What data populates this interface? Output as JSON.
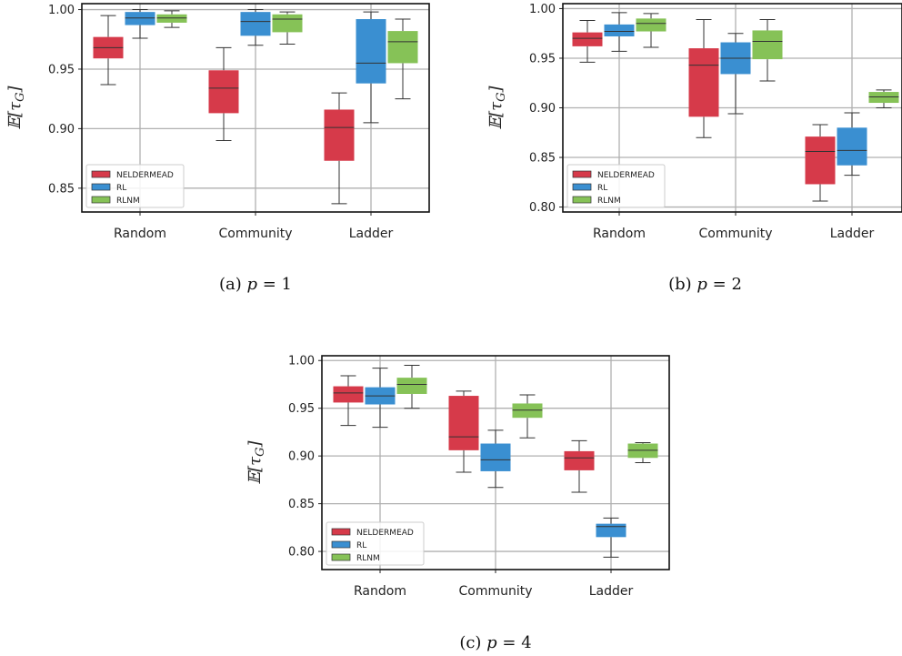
{
  "colors": {
    "NELDERMEAD": "#d63a4a",
    "RL": "#3a8fd1",
    "RLNM": "#86c257"
  },
  "chart_data": [
    {
      "type": "box",
      "caption_prefix": "(a) ",
      "caption_var": "p",
      "caption_value": " = 1",
      "ylabel": "𝔼[τ",
      "ylabel_sub": "G",
      "ylabel_close": "]",
      "ylim": [
        0.83,
        1.005
      ],
      "yticks": [
        "0.85",
        "0.90",
        "0.95",
        "1.00"
      ],
      "categories": [
        "Random",
        "Community",
        "Ladder"
      ],
      "grid": true,
      "legend_position": "bottom-left",
      "series": [
        {
          "name": "NELDERMEAD",
          "boxes": [
            {
              "whislo": 0.937,
              "q1": 0.959,
              "med": 0.968,
              "q3": 0.977,
              "whishi": 0.995
            },
            {
              "whislo": 0.89,
              "q1": 0.913,
              "med": 0.934,
              "q3": 0.949,
              "whishi": 0.968
            },
            {
              "whislo": 0.837,
              "q1": 0.873,
              "med": 0.901,
              "q3": 0.916,
              "whishi": 0.93
            }
          ]
        },
        {
          "name": "RL",
          "boxes": [
            {
              "whislo": 0.976,
              "q1": 0.987,
              "med": 0.993,
              "q3": 0.998,
              "whishi": 1.0
            },
            {
              "whislo": 0.97,
              "q1": 0.978,
              "med": 0.99,
              "q3": 0.998,
              "whishi": 1.0
            },
            {
              "whislo": 0.905,
              "q1": 0.938,
              "med": 0.955,
              "q3": 0.992,
              "whishi": 0.998
            }
          ]
        },
        {
          "name": "RLNM",
          "boxes": [
            {
              "whislo": 0.985,
              "q1": 0.989,
              "med": 0.993,
              "q3": 0.996,
              "whishi": 0.999
            },
            {
              "whislo": 0.971,
              "q1": 0.981,
              "med": 0.992,
              "q3": 0.996,
              "whishi": 0.998
            },
            {
              "whislo": 0.925,
              "q1": 0.955,
              "med": 0.973,
              "q3": 0.982,
              "whishi": 0.992
            }
          ]
        }
      ]
    },
    {
      "type": "box",
      "caption_prefix": "(b) ",
      "caption_var": "p",
      "caption_value": " = 2",
      "ylabel": "𝔼[τ",
      "ylabel_sub": "G",
      "ylabel_close": "]",
      "ylim": [
        0.795,
        1.005
      ],
      "yticks": [
        "0.80",
        "0.85",
        "0.90",
        "0.95",
        "1.00"
      ],
      "categories": [
        "Random",
        "Community",
        "Ladder"
      ],
      "grid": true,
      "legend_position": "bottom-left",
      "series": [
        {
          "name": "NELDERMEAD",
          "boxes": [
            {
              "whislo": 0.946,
              "q1": 0.962,
              "med": 0.97,
              "q3": 0.976,
              "whishi": 0.988
            },
            {
              "whislo": 0.87,
              "q1": 0.891,
              "med": 0.943,
              "q3": 0.96,
              "whishi": 0.989
            },
            {
              "whislo": 0.806,
              "q1": 0.823,
              "med": 0.856,
              "q3": 0.871,
              "whishi": 0.883
            }
          ]
        },
        {
          "name": "RL",
          "boxes": [
            {
              "whislo": 0.957,
              "q1": 0.972,
              "med": 0.977,
              "q3": 0.984,
              "whishi": 0.996
            },
            {
              "whislo": 0.894,
              "q1": 0.934,
              "med": 0.95,
              "q3": 0.966,
              "whishi": 0.975
            },
            {
              "whislo": 0.832,
              "q1": 0.842,
              "med": 0.857,
              "q3": 0.88,
              "whishi": 0.895
            }
          ]
        },
        {
          "name": "RLNM",
          "boxes": [
            {
              "whislo": 0.961,
              "q1": 0.977,
              "med": 0.985,
              "q3": 0.99,
              "whishi": 0.995
            },
            {
              "whislo": 0.927,
              "q1": 0.949,
              "med": 0.967,
              "q3": 0.978,
              "whishi": 0.989
            },
            {
              "whislo": 0.9,
              "q1": 0.905,
              "med": 0.911,
              "q3": 0.916,
              "whishi": 0.918
            }
          ]
        }
      ]
    },
    {
      "type": "box",
      "caption_prefix": "(c) ",
      "caption_var": "p",
      "caption_value": " = 4",
      "ylabel": "𝔼[τ",
      "ylabel_sub": "G",
      "ylabel_close": "]",
      "ylim": [
        0.781,
        1.005
      ],
      "yticks": [
        "0.80",
        "0.85",
        "0.90",
        "0.95",
        "1.00"
      ],
      "categories": [
        "Random",
        "Community",
        "Ladder"
      ],
      "grid": true,
      "legend_position": "bottom-left",
      "series": [
        {
          "name": "NELDERMEAD",
          "boxes": [
            {
              "whislo": 0.932,
              "q1": 0.956,
              "med": 0.966,
              "q3": 0.973,
              "whishi": 0.984
            },
            {
              "whislo": 0.883,
              "q1": 0.906,
              "med": 0.92,
              "q3": 0.963,
              "whishi": 0.968
            },
            {
              "whislo": 0.862,
              "q1": 0.885,
              "med": 0.898,
              "q3": 0.905,
              "whishi": 0.916
            }
          ]
        },
        {
          "name": "RL",
          "boxes": [
            {
              "whislo": 0.93,
              "q1": 0.954,
              "med": 0.963,
              "q3": 0.972,
              "whishi": 0.992
            },
            {
              "whislo": 0.867,
              "q1": 0.884,
              "med": 0.896,
              "q3": 0.913,
              "whishi": 0.927
            },
            {
              "whislo": 0.794,
              "q1": 0.815,
              "med": 0.826,
              "q3": 0.829,
              "whishi": 0.835
            }
          ]
        },
        {
          "name": "RLNM",
          "boxes": [
            {
              "whislo": 0.95,
              "q1": 0.965,
              "med": 0.975,
              "q3": 0.982,
              "whishi": 0.995
            },
            {
              "whislo": 0.919,
              "q1": 0.94,
              "med": 0.948,
              "q3": 0.955,
              "whishi": 0.964
            },
            {
              "whislo": 0.893,
              "q1": 0.898,
              "med": 0.906,
              "q3": 0.913,
              "whishi": 0.914
            }
          ]
        }
      ]
    }
  ]
}
